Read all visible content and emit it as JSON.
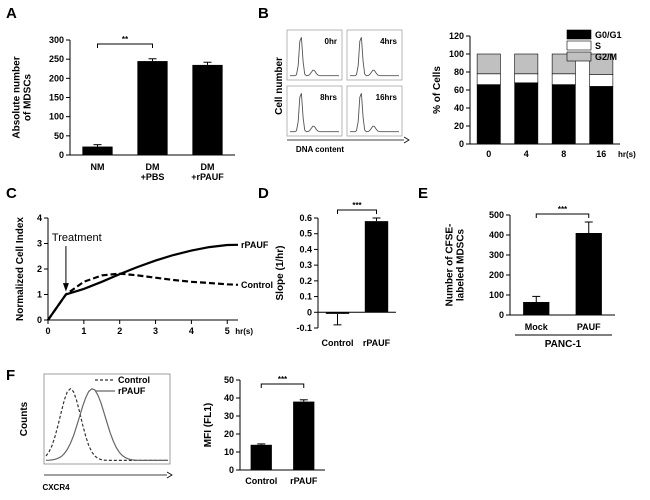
{
  "panels": {
    "A": {
      "letter": "A"
    },
    "B": {
      "letter": "B"
    },
    "C": {
      "letter": "C"
    },
    "D": {
      "letter": "D"
    },
    "E": {
      "letter": "E"
    },
    "F": {
      "letter": "F"
    }
  },
  "chart_data": [
    {
      "id": "A",
      "type": "bar",
      "categories": [
        "NM",
        "DM\n+PBS",
        "DM\n+rPAUF"
      ],
      "values": [
        22,
        245,
        235
      ],
      "errors": [
        5,
        6,
        7
      ],
      "ylabel": "Absolute number\nof MDSCs",
      "ylim": [
        0,
        300
      ],
      "yticks": [
        0,
        50,
        100,
        150,
        200,
        250,
        300
      ],
      "significance": [
        {
          "from": 0,
          "to": 1,
          "label": "**"
        }
      ]
    },
    {
      "id": "B-histograms",
      "type": "line",
      "ylabel": "Cell number",
      "xlabel": "DNA content",
      "panels": [
        "0hr",
        "4hrs",
        "8hrs",
        "16hrs"
      ]
    },
    {
      "id": "B",
      "type": "bar",
      "stacked": true,
      "categories": [
        "0",
        "4",
        "8",
        "16"
      ],
      "x_unit": "hr(s)",
      "series": [
        {
          "name": "G0/G1",
          "color": "#000000",
          "values": [
            66,
            68,
            66,
            64
          ]
        },
        {
          "name": "S",
          "color": "#ffffff",
          "values": [
            12,
            10,
            12,
            13
          ]
        },
        {
          "name": "G2/M",
          "color": "#c0c0c0",
          "values": [
            22,
            22,
            22,
            23
          ]
        }
      ],
      "ylabel": "% of Cells",
      "ylim": [
        0,
        120
      ],
      "yticks": [
        0,
        20,
        40,
        60,
        80,
        100,
        120
      ]
    },
    {
      "id": "C",
      "type": "line",
      "ylabel": "Normalized Cell Index",
      "x_unit": "hr(s)",
      "xlim": [
        0,
        5.3
      ],
      "xticks": [
        0,
        1,
        2,
        3,
        4,
        5
      ],
      "ylim": [
        0,
        4
      ],
      "yticks": [
        0,
        1,
        2,
        3,
        4
      ],
      "annotation": "Treatment",
      "annotation_x": 0.5,
      "series": [
        {
          "name": "rPAUF",
          "dashed": false,
          "x": [
            0,
            0.5,
            1.0,
            1.5,
            2.0,
            2.5,
            3.0,
            3.5,
            4.0,
            4.5,
            5.0,
            5.3
          ],
          "y": [
            0,
            1.0,
            1.22,
            1.5,
            1.8,
            2.08,
            2.33,
            2.55,
            2.72,
            2.86,
            2.94,
            2.95
          ]
        },
        {
          "name": "Control",
          "dashed": true,
          "x": [
            0,
            0.5,
            1.0,
            1.5,
            2.0,
            2.5,
            3.0,
            3.5,
            4.0,
            4.5,
            5.0,
            5.3
          ],
          "y": [
            0,
            1.0,
            1.5,
            1.75,
            1.82,
            1.75,
            1.66,
            1.57,
            1.5,
            1.45,
            1.4,
            1.38
          ]
        }
      ]
    },
    {
      "id": "D",
      "type": "bar",
      "categories": [
        "Control",
        "rPAUF"
      ],
      "values": [
        -0.01,
        0.58
      ],
      "errors": [
        0.07,
        0.02
      ],
      "ylabel": "Slope (1/hr)",
      "ylim": [
        -0.1,
        0.6
      ],
      "yticks": [
        -0.1,
        0,
        0.1,
        0.2,
        0.3,
        0.4,
        0.5,
        0.6
      ],
      "significance": [
        {
          "from": 0,
          "to": 1,
          "label": "***"
        }
      ]
    },
    {
      "id": "E",
      "type": "bar",
      "categories": [
        "Mock",
        "PAUF"
      ],
      "values": [
        65,
        410
      ],
      "errors": [
        28,
        55
      ],
      "ylabel": "Number of CFSE-\nlabeled MDSCs",
      "xgroup": "PANC-1",
      "ylim": [
        0,
        500
      ],
      "yticks": [
        0,
        100,
        200,
        300,
        400,
        500
      ],
      "significance": [
        {
          "from": 0,
          "to": 1,
          "label": "***"
        }
      ]
    },
    {
      "id": "F-histogram",
      "type": "line",
      "ylabel": "Counts",
      "xlabel": "CXCR4",
      "legend": [
        "Control",
        "rPAUF"
      ]
    },
    {
      "id": "F",
      "type": "bar",
      "categories": [
        "Control",
        "rPAUF"
      ],
      "values": [
        14,
        38
      ],
      "errors": [
        0.5,
        1
      ],
      "ylabel": "MFI (FL1)",
      "ylim": [
        0,
        50
      ],
      "yticks": [
        0,
        10,
        20,
        30,
        40,
        50
      ],
      "significance": [
        {
          "from": 0,
          "to": 1,
          "label": "***"
        }
      ]
    }
  ]
}
